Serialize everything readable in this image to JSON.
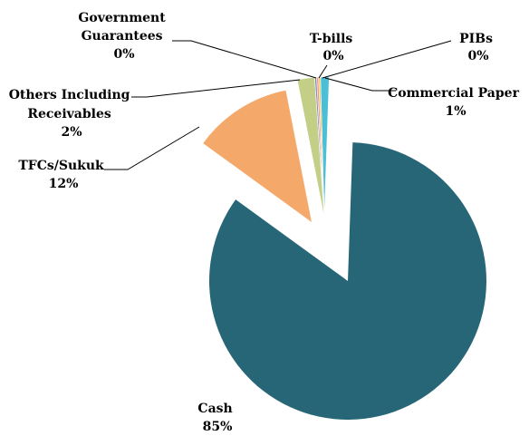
{
  "chart_data": {
    "type": "pie",
    "title": "",
    "slices": [
      {
        "name": "Cash",
        "value": 85,
        "label": "85%",
        "color": "#276677",
        "exploded": true
      },
      {
        "name": "TFCs/Sukuk",
        "value": 12,
        "label": "12%",
        "color": "#F4A96A",
        "exploded": true
      },
      {
        "name": "Others Including Receivables",
        "value": 2,
        "label": "2%",
        "color": "#C3CF86",
        "exploded": false
      },
      {
        "name": "Government Guarantees",
        "value": 0,
        "label": "0%",
        "color": "#8E88B8",
        "exploded": false
      },
      {
        "name": "T-bills",
        "value": 0,
        "label": "0%",
        "color": "#E89A82",
        "exploded": false
      },
      {
        "name": "PIBs",
        "value": 0,
        "label": "0%",
        "color": "#F2C35C",
        "exploded": false
      },
      {
        "name": "Commercial Paper",
        "value": 1,
        "label": "1%",
        "color": "#4BBFD6",
        "exploded": false
      }
    ],
    "labels": {
      "government_guarantees": [
        "Government",
        "Guarantees",
        "0%"
      ],
      "tbills": [
        "T-bills",
        "0%"
      ],
      "pibs": [
        "PIBs",
        "0%"
      ],
      "commercial_paper": [
        "Commercial Paper",
        "1%"
      ],
      "others": [
        "Others Including",
        "Receivables",
        "2%"
      ],
      "tfcs": [
        "TFCs/Sukuk",
        "12%"
      ],
      "cash": [
        "Cash",
        "85%"
      ]
    }
  }
}
